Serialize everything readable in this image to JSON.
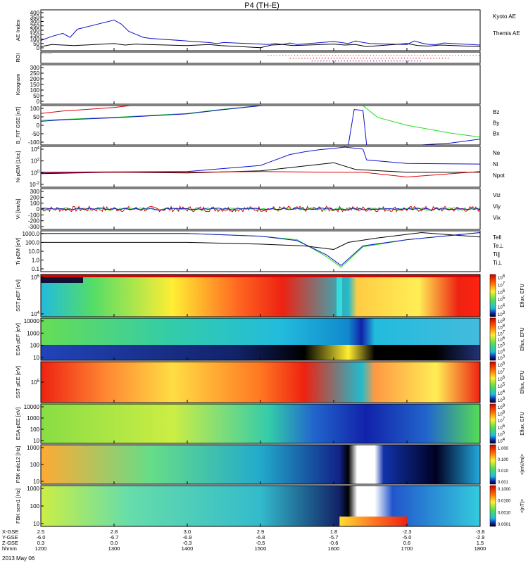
{
  "title": "P4 (TH-E)",
  "colors": {
    "black": "#000000",
    "red": "#dd0000",
    "green": "#22dd22",
    "blue": "#1010cc",
    "cyan": "#10b0d0",
    "orange": "#ee7700"
  },
  "chart_data": {
    "type": "line",
    "x_ticks": [
      "1200",
      "1300",
      "1400",
      "1500",
      "1600",
      "1700",
      "1800"
    ],
    "coord_rows": [
      {
        "name": "X-GSE",
        "values": [
          "2.5",
          "2.8",
          "3.0",
          "2.9",
          "1.8",
          "-2.3",
          "-3.8"
        ]
      },
      {
        "name": "Y-GSE",
        "values": [
          "-6.0",
          "-6.7",
          "-6.9",
          "-6.8",
          "-5.7",
          "-5.0",
          "-2.9"
        ]
      },
      {
        "name": "Z-GSE",
        "values": [
          "0.3",
          "0.0",
          "-0.3",
          "-0.5",
          "-0.6",
          "0.6",
          "1.5"
        ]
      },
      {
        "name": "hhmm",
        "values": [
          "1200",
          "1300",
          "1400",
          "1500",
          "1600",
          "1700",
          "1800"
        ]
      }
    ],
    "date_label": "2013 May 06",
    "panels": [
      {
        "id": "ae",
        "ylabel": "AE Index",
        "yticks": [
          "400",
          "350",
          "300",
          "250",
          "200",
          "150",
          "100",
          "50",
          "0"
        ],
        "ylim": [
          0,
          400
        ],
        "legend": [
          "Kyoto AE",
          "Themis AE"
        ],
        "series": [
          {
            "name": "Kyoto AE",
            "x": [
              1200,
              1215,
              1230,
              1240,
              1250,
              1300,
              1310,
              1320,
              1330,
              1340,
              1350,
              1400,
              1410,
              1420,
              1430,
              1440,
              1450,
              1500,
              1510,
              1520,
              1530,
              1540,
              1550,
              1600,
              1610,
              1620,
              1630,
              1640,
              1650,
              1700,
              1710,
              1720,
              1730,
              1740,
              1750,
              1800
            ],
            "y": [
              100,
              140,
              170,
              130,
              210,
              300,
              260,
              190,
              160,
              130,
              120,
              95,
              90,
              85,
              80,
              70,
              80,
              65,
              60,
              70,
              60,
              75,
              60,
              90,
              80,
              70,
              95,
              80,
              70,
              60,
              95,
              75,
              60,
              60,
              75,
              55
            ]
          },
          {
            "name": "Themis AE",
            "x": [
              1200,
              1215,
              1230,
              1245,
              1300,
              1315,
              1330,
              1345,
              1400,
              1415,
              1430,
              1445,
              1500,
              1515,
              1530,
              1545,
              1600,
              1615,
              1630,
              1645,
              1700,
              1715,
              1730,
              1745,
              1800
            ],
            "y": [
              40,
              60,
              55,
              50,
              70,
              55,
              65,
              60,
              50,
              55,
              60,
              50,
              30,
              55,
              60,
              50,
              65,
              55,
              60,
              40,
              70,
              50,
              45,
              55,
              40
            ]
          }
        ]
      },
      {
        "id": "roi",
        "ylabel": "ROI",
        "ylim": [
          0,
          1
        ]
      },
      {
        "id": "keogram",
        "ylabel": "Keogram",
        "yticks": [
          "300",
          "250",
          "200",
          "150",
          "100",
          "50",
          "0"
        ],
        "ylim": [
          0,
          300
        ]
      },
      {
        "id": "bfit",
        "ylabel": "B_FIT GSE [nT]",
        "yticks": [
          "100",
          "50",
          "0",
          "-50",
          "-100"
        ],
        "ylim": [
          -100,
          100
        ],
        "legend": [
          "Bz",
          "By",
          "Bx"
        ],
        "series": [
          {
            "name": "Bz",
            "x": [
              1200,
              1230,
              1300,
              1322
            ],
            "y": [
              60,
              72,
              90,
              100
            ]
          },
          {
            "name": "By",
            "x": [
              1200,
              1230,
              1300,
              1400,
              1445,
              1502
            ],
            "y": [
              25,
              30,
              40,
              60,
              80,
              100
            ]
          },
          {
            "name": "Bx",
            "x": [
              1200,
              1230,
              1300,
              1400,
              1445,
              1502
            ],
            "y": [
              20,
              28,
              38,
              58,
              78,
              100
            ]
          }
        ]
      },
      {
        "id": "ni",
        "ylabel": "Ni pEM [1/cc]",
        "yticks": [
          "10^4",
          "10^2",
          "10^0",
          "10^-2"
        ],
        "ylim": [
          -2,
          4
        ],
        "legend": [
          "Ne",
          "Ni",
          "Npot"
        ]
      },
      {
        "id": "vi",
        "ylabel": "Vi [km/s]",
        "yticks": [
          "300",
          "200",
          "100",
          "0",
          "-100",
          "-200",
          "-300"
        ],
        "ylim": [
          -300,
          300
        ],
        "legend": [
          "Viz",
          "Viy",
          "Vix"
        ]
      },
      {
        "id": "ti",
        "ylabel": "Ti pEM [eV]",
        "yticks": [
          "1000.0",
          "100.0",
          "10.0",
          "1.0",
          "0.1"
        ],
        "ylim": [
          -1,
          3
        ],
        "legend": [
          "Tell",
          "Te⊥",
          "Ti∥",
          "Ti⊥"
        ]
      },
      {
        "id": "sst1",
        "ylabel": "SST pEF [eV]",
        "yticks": [
          "10^5",
          "10^4"
        ],
        "cbar_label": "Eflux, EFU",
        "cbar_ticks": [
          "10^8",
          "10^7",
          "10^6",
          "10^5",
          "10^4",
          "10^3"
        ]
      },
      {
        "id": "esa1",
        "ylabel": "ESA pEF [eV]",
        "yticks": [
          "10000",
          "1000",
          "100",
          "10"
        ],
        "cbar_label": "Eflux, EFU",
        "cbar_ticks": [
          "10^9",
          "10^8",
          "10^7",
          "10^6",
          "10^5",
          "10^4",
          "10^3"
        ]
      },
      {
        "id": "sst2",
        "ylabel": "SST pEE [eV]",
        "yticks": [
          "10^5"
        ],
        "cbar_label": "Eflux, EFU",
        "cbar_ticks": [
          "10^8",
          "10^7",
          "10^6",
          "10^5",
          "10^4",
          "10^3"
        ]
      },
      {
        "id": "esa2",
        "ylabel": "ESA pEE [eV]",
        "yticks": [
          "10000",
          "1000",
          "100",
          "10"
        ],
        "cbar_label": "Eflux, EFU",
        "cbar_ticks": [
          "10^9",
          "10^8",
          "10^7",
          "10^6",
          "10^5",
          "10^4"
        ]
      },
      {
        "id": "fbk1",
        "ylabel": "FBK edc12 [Hz]",
        "yticks": [
          "1000",
          "100",
          "10"
        ],
        "cbar_label": "<|mV/m|>",
        "cbar_ticks": [
          "1.000",
          "0.100",
          "0.010",
          "0.001"
        ]
      },
      {
        "id": "fbk2",
        "ylabel": "FBK scm1 [Hz]",
        "yticks": [
          "1000",
          "100",
          "10"
        ],
        "cbar_label": "<|nT|>",
        "cbar_ticks": [
          "0.1000",
          "0.0100",
          "0.0010",
          "0.0001"
        ]
      }
    ]
  }
}
